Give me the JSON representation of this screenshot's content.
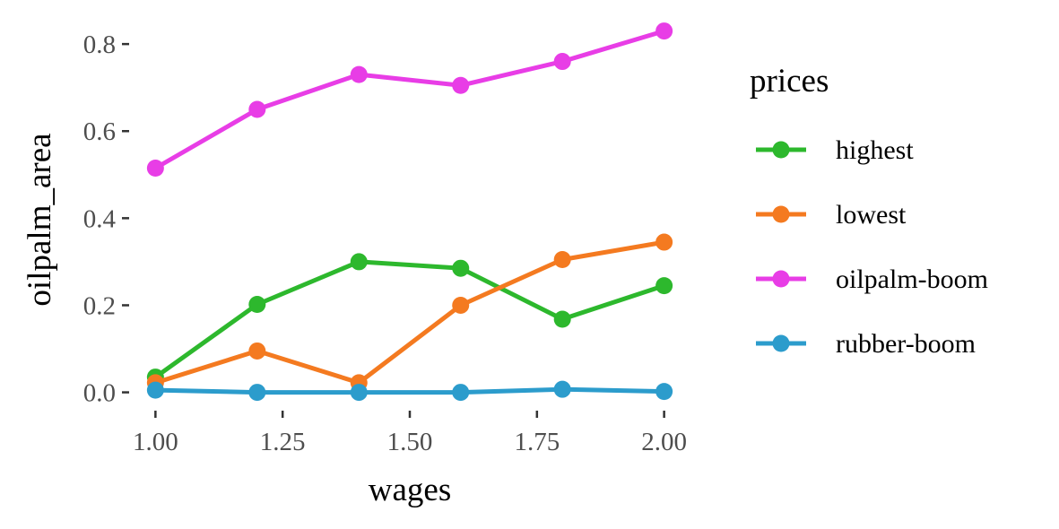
{
  "chart_data": {
    "type": "line",
    "xlabel": "wages",
    "ylabel": "oilpalm_area",
    "xlim": [
      0.95,
      2.05
    ],
    "ylim": [
      -0.04,
      0.86
    ],
    "x_ticks": [
      1.0,
      1.25,
      1.5,
      1.75,
      2.0
    ],
    "x_tick_labels": [
      "1.00",
      "1.25",
      "1.50",
      "1.75",
      "2.00"
    ],
    "y_ticks": [
      0.0,
      0.2,
      0.4,
      0.6,
      0.8
    ],
    "y_tick_labels": [
      "0.0",
      "0.2",
      "0.4",
      "0.6",
      "0.8"
    ],
    "grid": false,
    "legend": {
      "title": "prices",
      "position": "right"
    },
    "x": [
      1.0,
      1.2,
      1.4,
      1.6,
      1.8,
      2.0
    ],
    "series": [
      {
        "name": "highest",
        "color": "#2db82d",
        "values": [
          0.035,
          0.202,
          0.3,
          0.285,
          0.168,
          0.245
        ]
      },
      {
        "name": "lowest",
        "color": "#f47a20",
        "values": [
          0.022,
          0.095,
          0.022,
          0.2,
          0.305,
          0.345
        ]
      },
      {
        "name": "oilpalm-boom",
        "color": "#e83de6",
        "values": [
          0.515,
          0.65,
          0.73,
          0.705,
          0.76,
          0.83
        ]
      },
      {
        "name": "rubber-boom",
        "color": "#2c9ccc",
        "values": [
          0.005,
          0.0,
          0.0,
          0.0,
          0.007,
          0.002
        ]
      }
    ]
  }
}
